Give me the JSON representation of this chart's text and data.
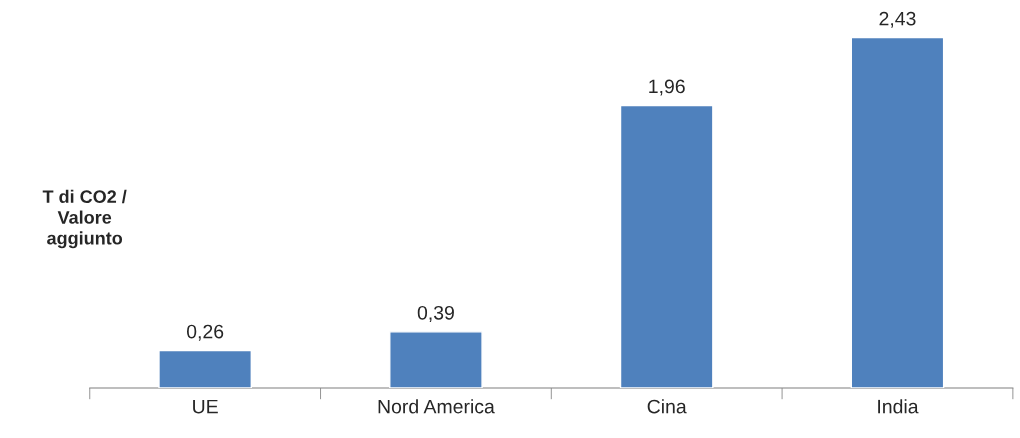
{
  "chart_data": {
    "type": "bar",
    "ylabel": "T di CO2 /\nValore\naggiunto",
    "categories": [
      "UE",
      "Nord America",
      "Cina",
      "India"
    ],
    "values": [
      0.26,
      0.39,
      1.96,
      2.43
    ],
    "color": "#4f81bd",
    "value_labels": [
      "0,26",
      "0,39",
      "1,96",
      "2,43"
    ],
    "grid": false,
    "legend": false
  }
}
